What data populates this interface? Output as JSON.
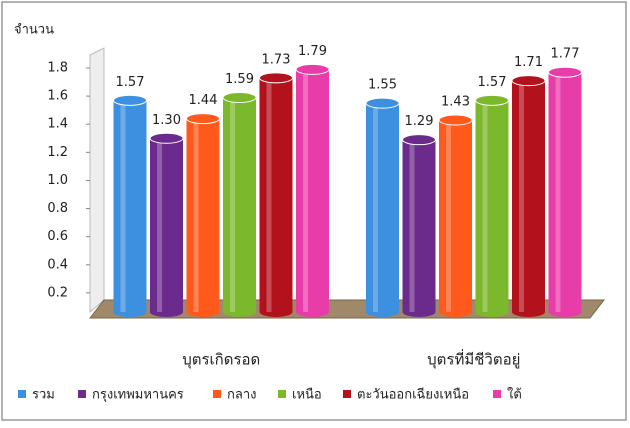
{
  "chart_data": {
    "type": "bar",
    "style": "3d-cylinder",
    "y_label": "จำนวน",
    "categories": [
      "บุตรเกิดรอด",
      "บุตรที่มีชีวิตอยู่"
    ],
    "series": [
      {
        "name": "รวม",
        "color": "#3d8fe0",
        "values": [
          1.57,
          1.55
        ],
        "value_labels": [
          "1.57",
          "1.55"
        ]
      },
      {
        "name": "กรุงเทพมหานคร",
        "color": "#6b2b8c",
        "values": [
          1.3,
          1.29
        ],
        "value_labels": [
          "1.30",
          "1.29"
        ]
      },
      {
        "name": "กลาง",
        "color": "#ff5a1c",
        "values": [
          1.44,
          1.43
        ],
        "value_labels": [
          "1.44",
          "1.43"
        ]
      },
      {
        "name": "เหนือ",
        "color": "#7cb82b",
        "values": [
          1.59,
          1.57
        ],
        "value_labels": [
          "1.59",
          "1.57"
        ]
      },
      {
        "name": "ตะวันออกเฉียงเหนือ",
        "color": "#b3111c",
        "values": [
          1.73,
          1.71
        ],
        "value_labels": [
          "1.73",
          "1.71"
        ]
      },
      {
        "name": "ใต้",
        "color": "#e83ca8",
        "values": [
          1.79,
          1.77
        ],
        "value_labels": [
          "1.79",
          "1.77"
        ]
      }
    ],
    "ylim": [
      0,
      1.8
    ],
    "yticks": [
      0.2,
      0.4,
      0.6,
      0.8,
      {
        "value": 1,
        "label": "1.0"
      },
      1.2,
      1.4,
      1.6,
      1.8
    ],
    "legend": "bottom"
  }
}
